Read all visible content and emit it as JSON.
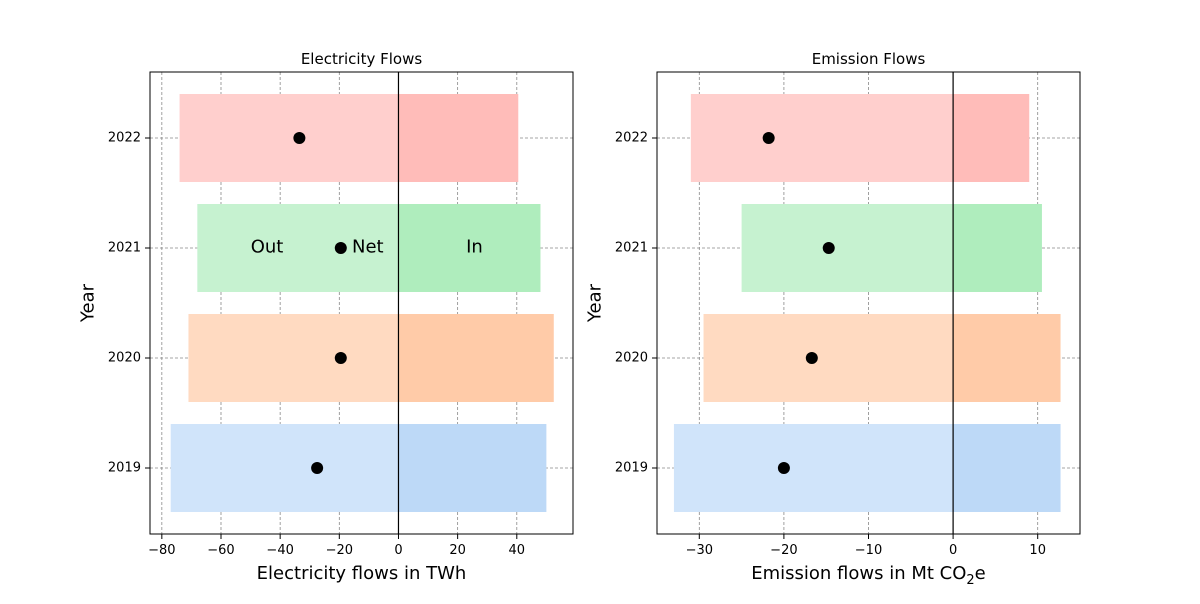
{
  "chart_data": [
    {
      "type": "bar",
      "orientation": "horizontal",
      "title": "Electricity Flows",
      "xlabel": "Electricity flows in TWh",
      "ylabel": "Year",
      "categories": [
        "2019",
        "2020",
        "2021",
        "2022"
      ],
      "xlim": [
        -84,
        59
      ],
      "xticks": [
        -80,
        -60,
        -40,
        -20,
        0,
        20,
        40
      ],
      "grid": true,
      "series": [
        {
          "role": "out",
          "values": [
            -77,
            -71,
            -68,
            -74
          ]
        },
        {
          "role": "in",
          "values": [
            50,
            52.5,
            48,
            40.5
          ]
        },
        {
          "role": "net",
          "values": [
            -27.5,
            -19.5,
            -19.5,
            -33.5
          ]
        }
      ],
      "annotations": [
        "Out",
        "Net",
        "In"
      ],
      "colors": {
        "2019": "#a1c9f4",
        "2020": "#ffb482",
        "2021": "#8de5a1",
        "2022": "#ff9f9b"
      }
    },
    {
      "type": "bar",
      "orientation": "horizontal",
      "title": "Emission Flows",
      "xlabel": "Emission flows in Mt CO",
      "xlabel_subscript": "2",
      "xlabel_suffix": "e",
      "ylabel": "Year",
      "categories": [
        "2019",
        "2020",
        "2021",
        "2022"
      ],
      "xlim": [
        -35,
        15
      ],
      "xticks": [
        -30,
        -20,
        -10,
        0,
        10
      ],
      "grid": true,
      "series": [
        {
          "role": "out",
          "values": [
            -33,
            -29.5,
            -25,
            -31
          ]
        },
        {
          "role": "in",
          "values": [
            12.7,
            12.7,
            10.5,
            9
          ]
        },
        {
          "role": "net",
          "values": [
            -20,
            -16.7,
            -14.7,
            -21.8
          ]
        }
      ],
      "colors": {
        "2019": "#a1c9f4",
        "2020": "#ffb482",
        "2021": "#8de5a1",
        "2022": "#ff9f9b"
      }
    }
  ]
}
